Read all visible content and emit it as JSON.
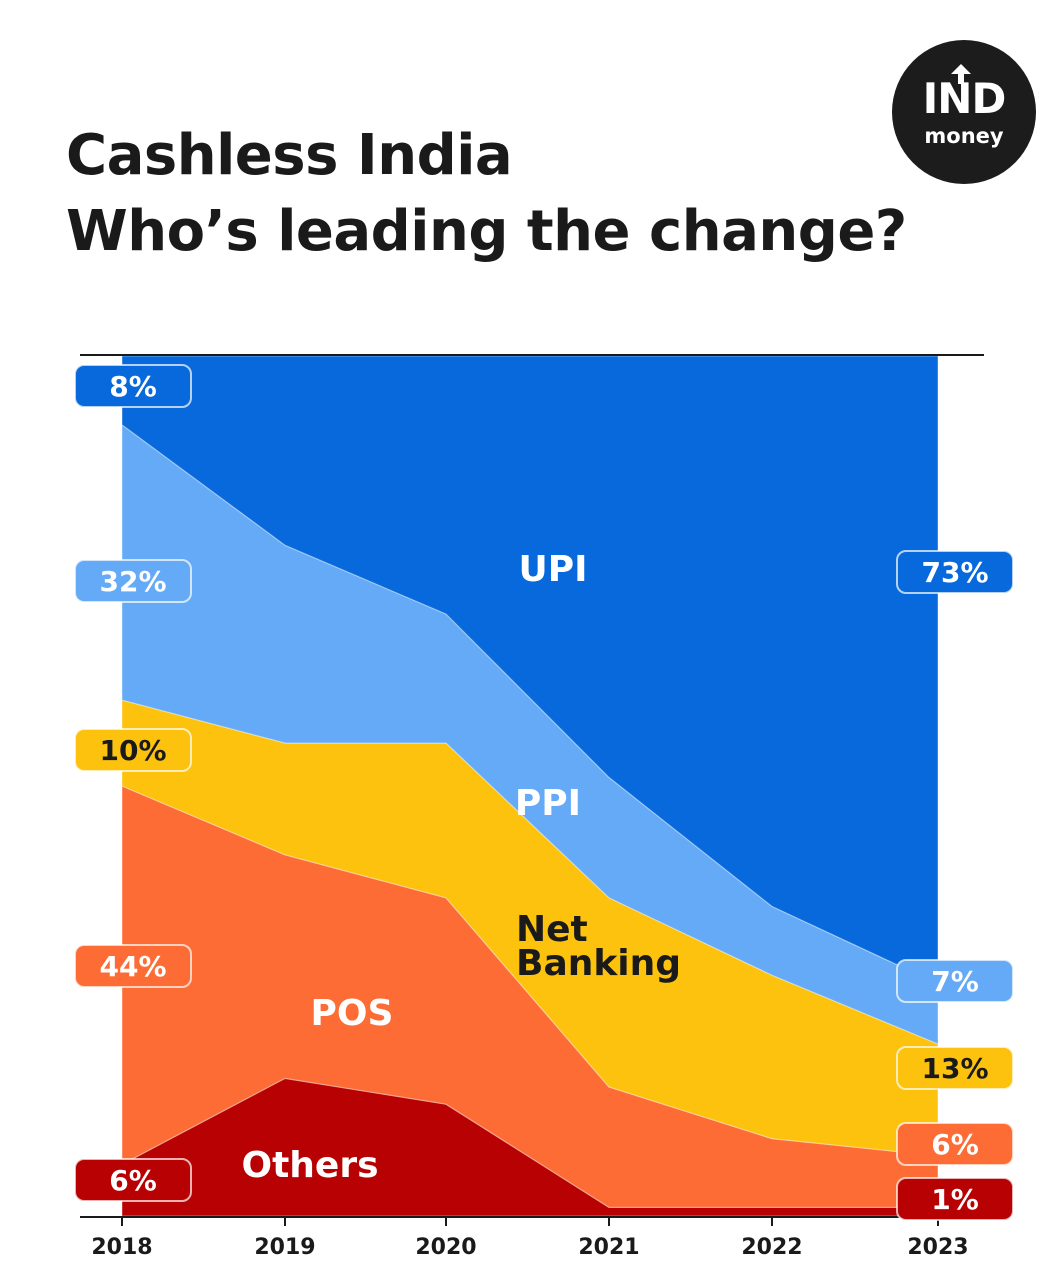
{
  "title": {
    "line1": "Cashless India",
    "line2": "Who’s leading the change?"
  },
  "logo": {
    "line1": "IND",
    "line2": "money"
  },
  "colors": {
    "UPI": "#0769DB",
    "PPI": "#64AAF6",
    "Net Banking": "#FDC20E",
    "POS": "#FE6C35",
    "Others": "#B80102"
  },
  "chart_data": {
    "type": "area",
    "stacked": true,
    "normalized": true,
    "x": [
      "2018",
      "2019",
      "2020",
      "2021",
      "2022",
      "2023"
    ],
    "ylim": [
      0,
      100
    ],
    "series": [
      {
        "name": "Others",
        "values": [
          6,
          16,
          13,
          1,
          1,
          1
        ]
      },
      {
        "name": "POS",
        "values": [
          44,
          26,
          24,
          14,
          8,
          6
        ]
      },
      {
        "name": "Net Banking",
        "values": [
          10,
          13,
          18,
          22,
          19,
          13
        ]
      },
      {
        "name": "PPI",
        "values": [
          32,
          23,
          15,
          14,
          8,
          7
        ]
      },
      {
        "name": "UPI",
        "values": [
          8,
          22,
          30,
          49,
          64,
          73
        ]
      }
    ],
    "start_labels": [
      {
        "series": "UPI",
        "text": "8%"
      },
      {
        "series": "PPI",
        "text": "32%"
      },
      {
        "series": "Net Banking",
        "text": "10%"
      },
      {
        "series": "POS",
        "text": "44%"
      },
      {
        "series": "Others",
        "text": "6%"
      }
    ],
    "end_labels": [
      {
        "series": "UPI",
        "text": "73%"
      },
      {
        "series": "PPI",
        "text": "7%"
      },
      {
        "series": "Net Banking",
        "text": "13%"
      },
      {
        "series": "POS",
        "text": "6%"
      },
      {
        "series": "Others",
        "text": "1%"
      }
    ],
    "area_labels": [
      {
        "series": "UPI",
        "text": "UPI"
      },
      {
        "series": "PPI",
        "text": "PPI"
      },
      {
        "series": "Net Banking",
        "text": "Net\nBanking"
      },
      {
        "series": "POS",
        "text": "POS"
      },
      {
        "series": "Others",
        "text": "Others"
      }
    ]
  }
}
